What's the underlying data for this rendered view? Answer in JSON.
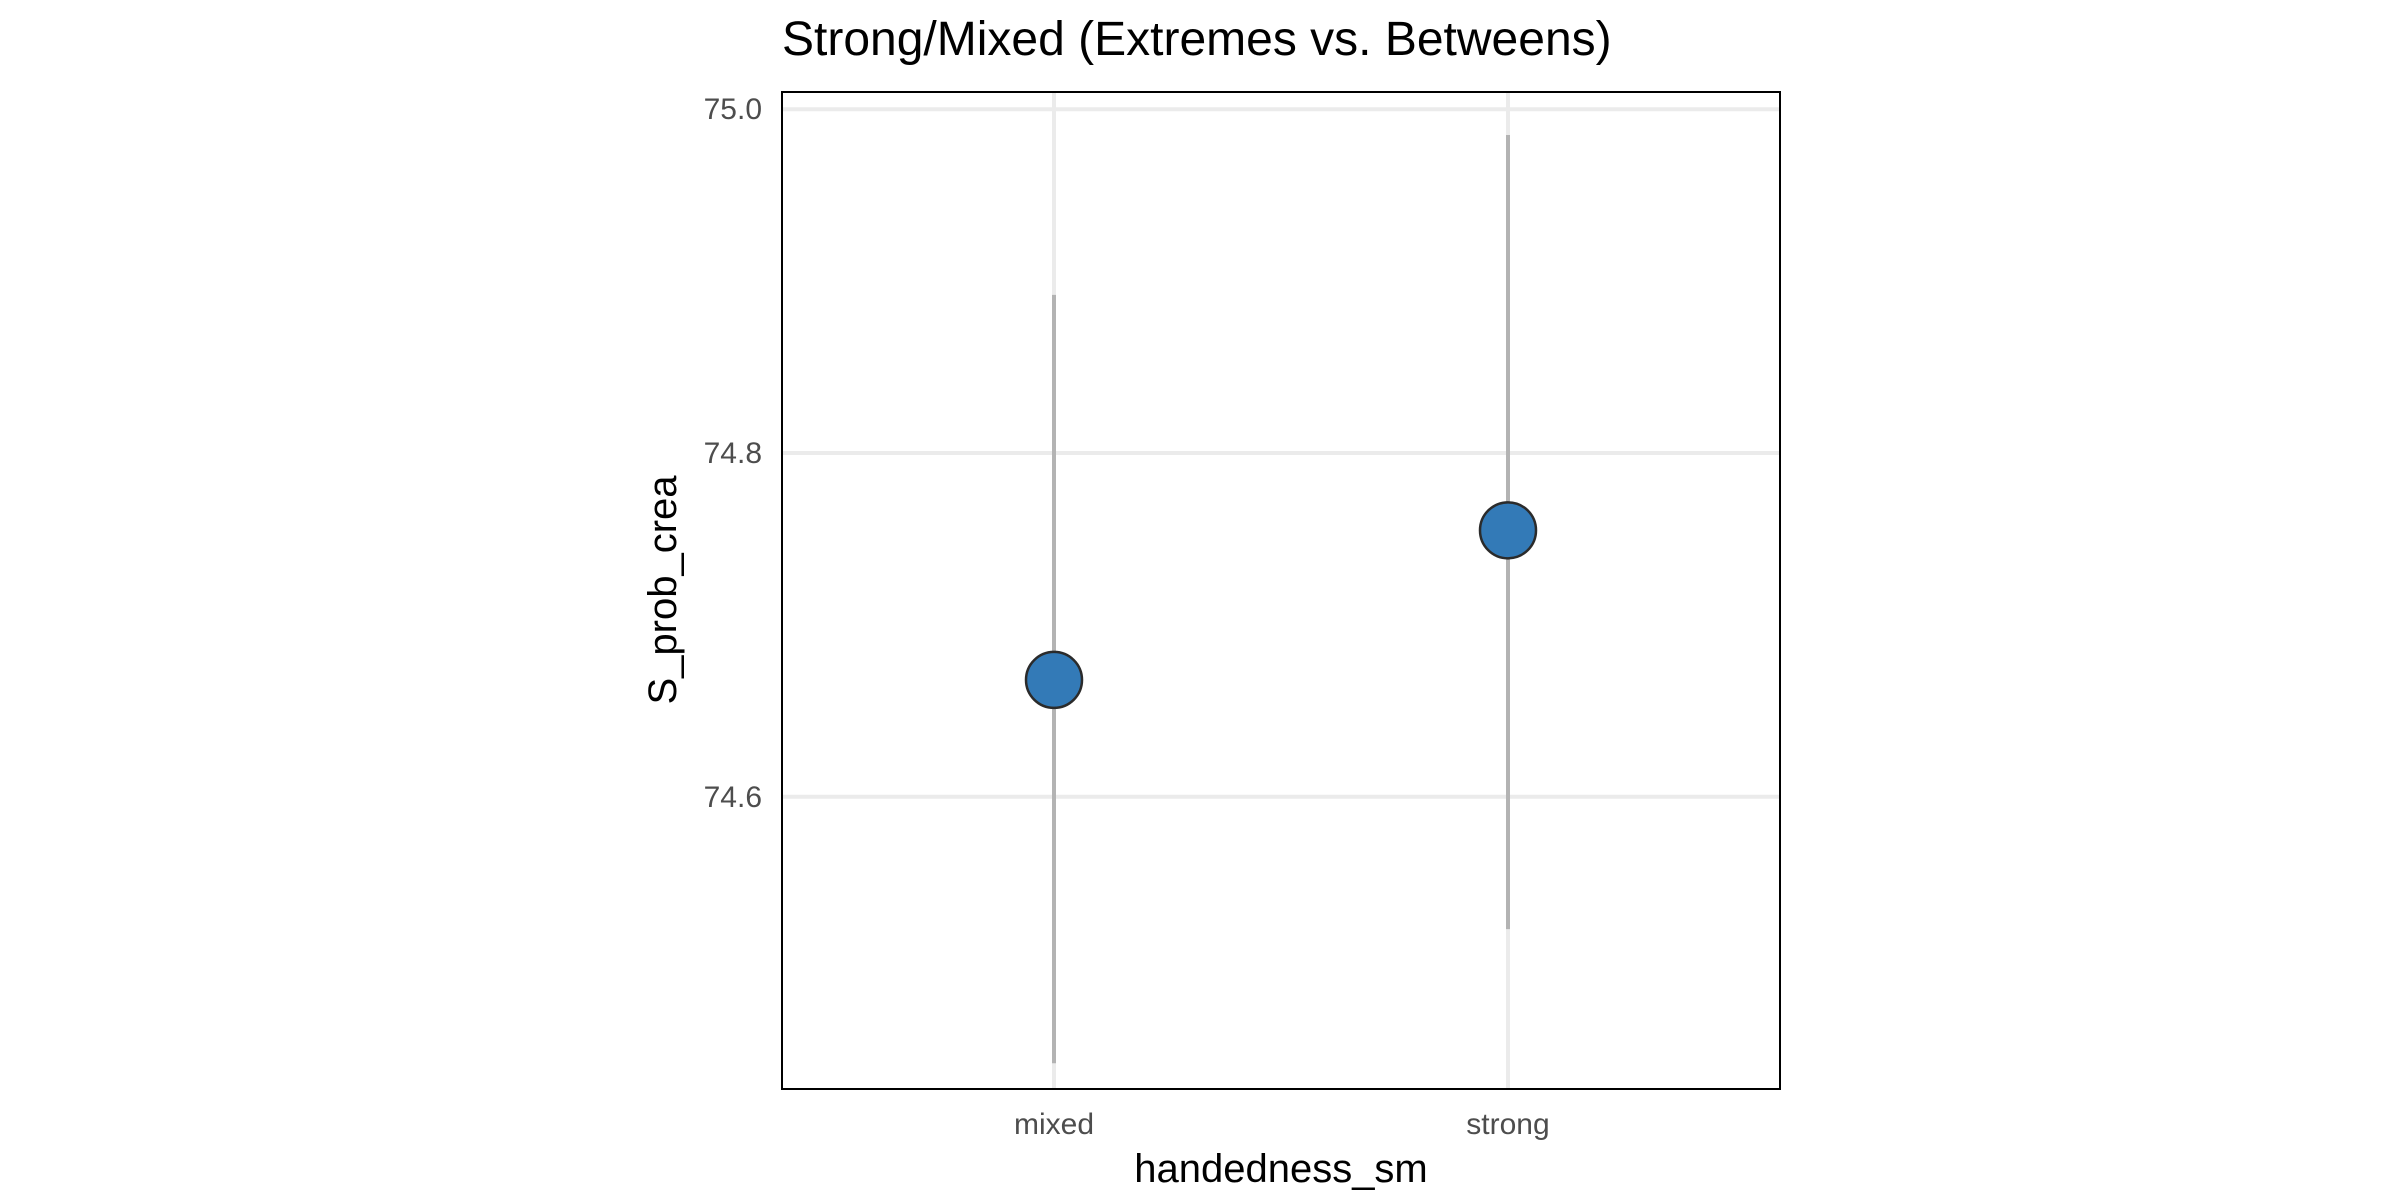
{
  "chart_data": {
    "type": "scatter",
    "title": "Strong/Mixed (Extremes vs. Betweens)",
    "xlabel": "handedness_sm",
    "ylabel": "S_prob_crea",
    "categories": [
      "mixed",
      "strong"
    ],
    "series": [
      {
        "points": [
          {
            "x": "mixed",
            "y": 74.668,
            "ymin": 74.445,
            "ymax": 74.892
          },
          {
            "x": "strong",
            "y": 74.755,
            "ymin": 74.523,
            "ymax": 74.985
          }
        ]
      }
    ],
    "ylim": [
      74.43,
      75.01
    ],
    "yticks": [
      "74.6",
      "74.8",
      "75.0"
    ],
    "grid": true,
    "point_color": "#337ab7",
    "errorbar_color": "#b3b3b3",
    "grid_color": "#ebebeb"
  }
}
